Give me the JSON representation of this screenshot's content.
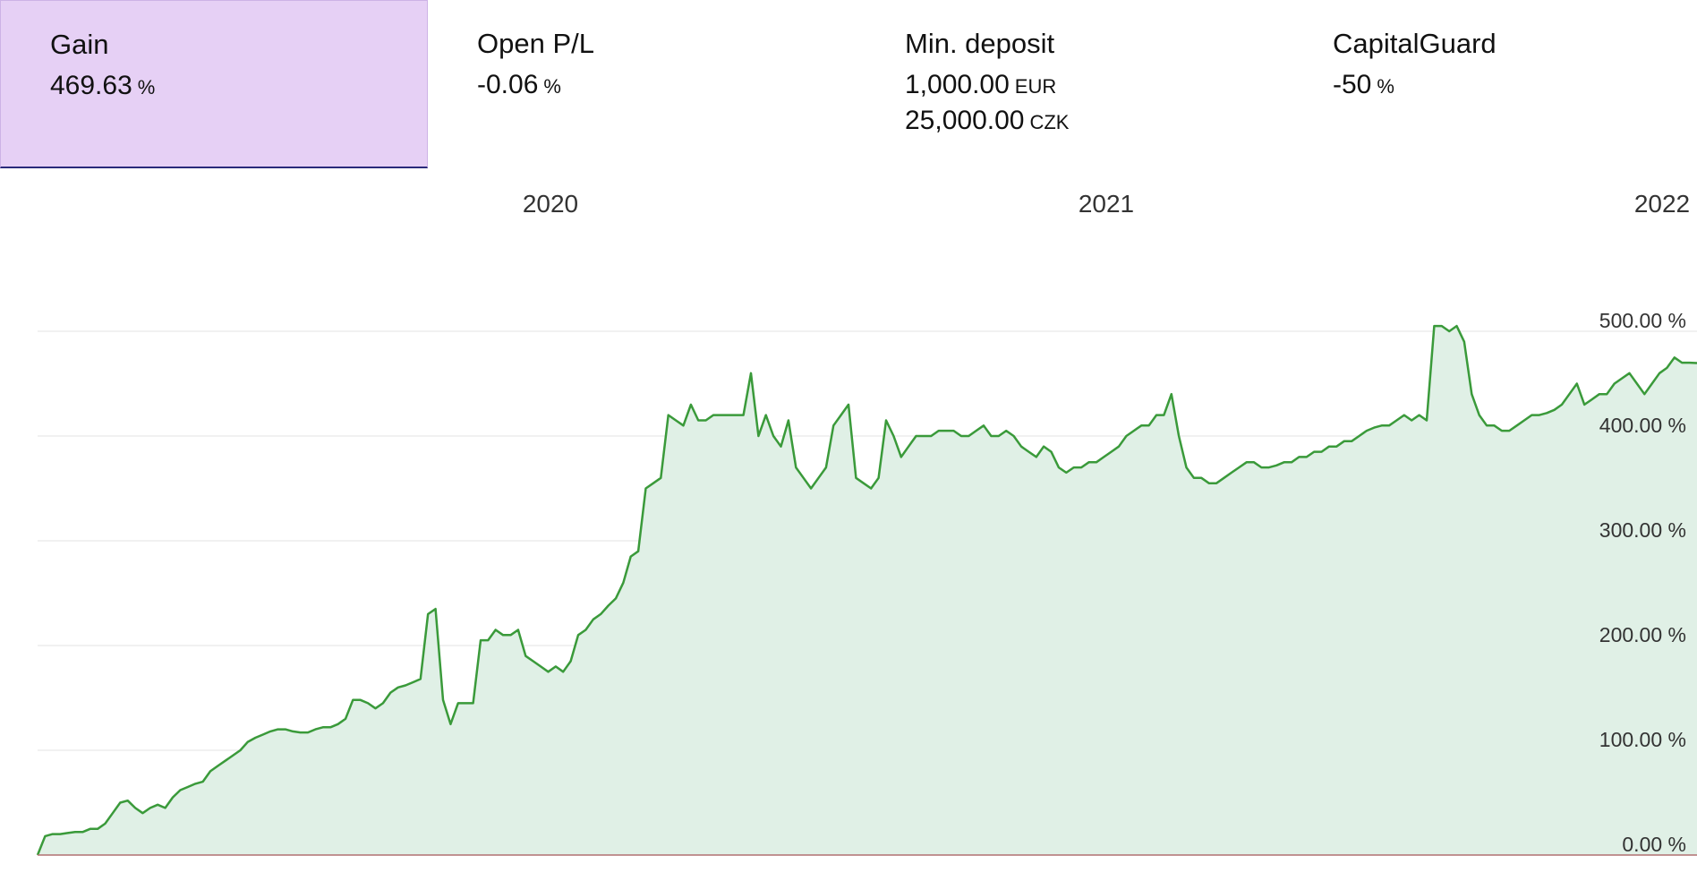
{
  "stats": [
    {
      "label": "Gain",
      "values": [
        {
          "value": "469.63",
          "unit": "%"
        }
      ],
      "active": true
    },
    {
      "label": "Open P/L",
      "values": [
        {
          "value": "-0.06",
          "unit": "%"
        }
      ],
      "active": false
    },
    {
      "label": "Min. deposit",
      "values": [
        {
          "value": "1,000.00",
          "unit": "EUR"
        },
        {
          "value": "25,000.00",
          "unit": "CZK"
        }
      ],
      "active": false
    },
    {
      "label": "CapitalGuard",
      "values": [
        {
          "value": "-50",
          "unit": "%"
        }
      ],
      "active": false
    }
  ],
  "colors": {
    "line": "#3a9a3a",
    "fill": "#e0f0e6",
    "grid": "#e3e3e3",
    "baseline": "#b07070",
    "active_tab_bg": "#e6d0f5"
  },
  "chart_data": {
    "type": "area",
    "x_ticks": [
      "2020",
      "2021",
      "2022"
    ],
    "y_ticks": [
      "0.00 %",
      "100.00 %",
      "200.00 %",
      "300.00 %",
      "400.00 %",
      "500.00 %"
    ],
    "ylim": [
      0,
      500
    ],
    "grid": true,
    "series": [
      {
        "values": [
          0,
          18,
          20,
          20,
          21,
          22,
          22,
          25,
          25,
          30,
          40,
          50,
          52,
          45,
          40,
          45,
          48,
          45,
          55,
          62,
          65,
          68,
          70,
          80,
          85,
          90,
          95,
          100,
          108,
          112,
          115,
          118,
          120,
          120,
          118,
          117,
          117,
          120,
          122,
          122,
          125,
          130,
          148,
          148,
          145,
          140,
          145,
          155,
          160,
          162,
          165,
          168,
          230,
          235,
          148,
          125,
          145,
          145,
          145,
          205,
          205,
          215,
          210,
          210,
          215,
          190,
          185,
          180,
          175,
          180,
          175,
          185,
          210,
          215,
          225,
          230,
          238,
          245,
          260,
          285,
          290,
          350,
          355,
          360,
          420,
          415,
          410,
          430,
          415,
          415,
          420,
          420,
          420,
          420,
          420,
          460,
          400,
          420,
          400,
          390,
          415,
          370,
          360,
          350,
          360,
          370,
          410,
          420,
          430,
          360,
          355,
          350,
          360,
          415,
          400,
          380,
          390,
          400,
          400,
          400,
          405,
          405,
          405,
          400,
          400,
          405,
          410,
          400,
          400,
          405,
          400,
          390,
          385,
          380,
          390,
          385,
          370,
          365,
          370,
          370,
          375,
          375,
          380,
          385,
          390,
          400,
          405,
          410,
          410,
          420,
          420,
          440,
          400,
          370,
          360,
          360,
          355,
          355,
          360,
          365,
          370,
          375,
          375,
          370,
          370,
          372,
          375,
          375,
          380,
          380,
          385,
          385,
          390,
          390,
          395,
          395,
          400,
          405,
          408,
          410,
          410,
          415,
          420,
          415,
          420,
          415,
          505,
          505,
          500,
          505,
          490,
          440,
          420,
          410,
          410,
          405,
          405,
          410,
          415,
          420,
          420,
          422,
          425,
          430,
          440,
          450,
          430,
          435,
          440,
          440,
          450,
          455,
          460,
          450,
          440,
          450,
          460,
          465,
          475,
          470,
          470,
          469.63
        ]
      }
    ]
  }
}
